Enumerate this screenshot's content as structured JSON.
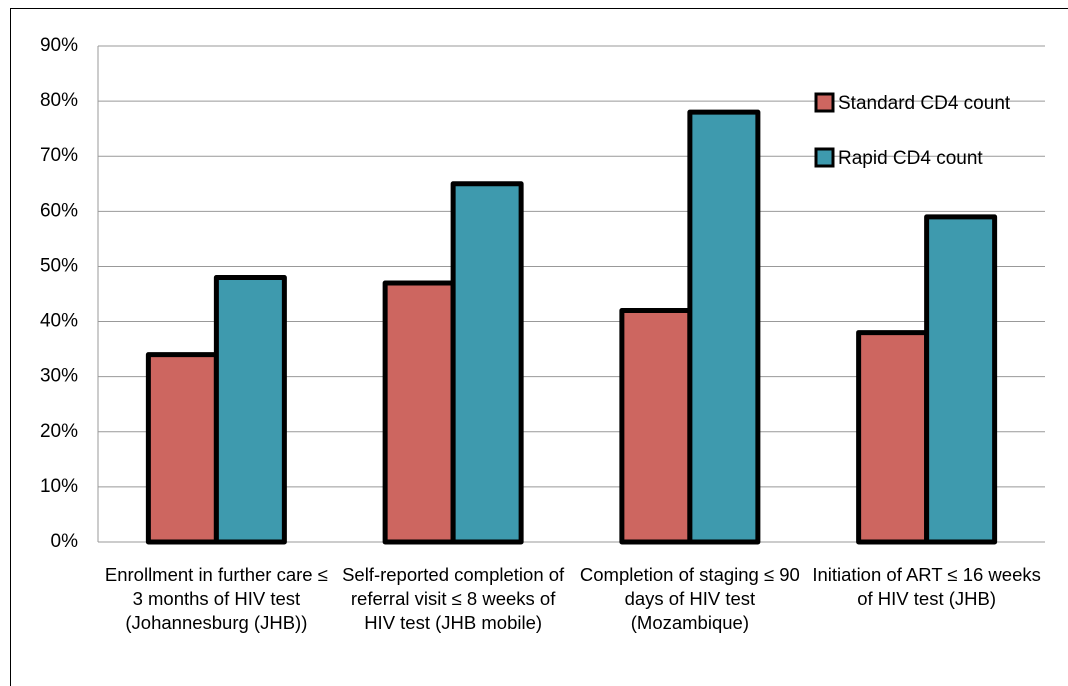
{
  "chart_data": {
    "type": "bar",
    "categories": [
      "Enrollment in further care ≤ 3 months of HIV test (Johannesburg (JHB))",
      "Self-reported completion of referral visit ≤ 8 weeks of HIV test (JHB mobile)",
      "Completion of staging ≤ 90 days of HIV test (Mozambique)",
      "Initiation of ART ≤ 16 weeks of HIV test (JHB)"
    ],
    "series": [
      {
        "name": "Standard CD4 count",
        "color": "#cd6660",
        "values": [
          34,
          47,
          42,
          38
        ]
      },
      {
        "name": "Rapid CD4 count",
        "color": "#3e9aae",
        "values": [
          48,
          65,
          78,
          59
        ]
      }
    ],
    "ylim": [
      0,
      90
    ],
    "yticks": [
      {
        "value": 0,
        "label": "0%"
      },
      {
        "value": 10,
        "label": "10%"
      },
      {
        "value": 20,
        "label": "20%"
      },
      {
        "value": 30,
        "label": "30%"
      },
      {
        "value": 40,
        "label": "40%"
      },
      {
        "value": 50,
        "label": "50%"
      },
      {
        "value": 60,
        "label": "60%"
      },
      {
        "value": 70,
        "label": "70%"
      },
      {
        "value": 80,
        "label": "80%"
      },
      {
        "value": 90,
        "label": "90%"
      }
    ],
    "grid": true,
    "legend": "upper right"
  }
}
